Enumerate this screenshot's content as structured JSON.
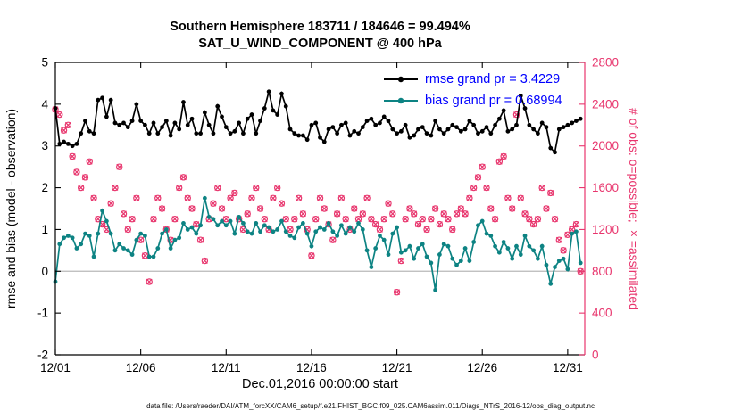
{
  "figure": {
    "title_line1": "Southern Hemisphere 183711 / 184646 = 99.494%",
    "title_line2": "SAT_U_WIND_COMPONENT @ 400 hPa",
    "xlabel": "Dec.01,2016 00:00:00 start",
    "ylabel_left": "rmse and bias (model - observation)",
    "ylabel_right": "# of obs: o=possible; ×=assimilated",
    "datafile_caption": "data file: /Users/raeder/DAI/ATM_forcXX/CAM6_setup/f.e21.FHIST_BGC.f09_025.CAM6assim.011/Diags_NTrS_2016-12/obs_diag_output.nc"
  },
  "chart_data": {
    "type": "line",
    "title": "Southern Hemisphere 183711 / 184646 = 99.494%",
    "subtitle": "SAT_U_WIND_COMPONENT @ 400 hPa",
    "xlabel": "Dec.01,2016 00:00:00 start",
    "ylabel_left": "rmse and bias (model - observation)",
    "ylabel_right": "# of obs: o=possible; ×=assimilated",
    "grid": "off",
    "legend": {
      "position": "top-right-inside",
      "text_color": "#0000ff",
      "rmse": "rmse grand pr = 3.4229",
      "bias": "bias grand pr = 0.68994"
    },
    "stats": {
      "rmse_grand_pr": 3.4229,
      "bias_grand_pr": 0.68994,
      "possible": 184646,
      "assimilated": 183711,
      "assimilated_pct": 99.494
    },
    "axes": {
      "left": {
        "range": [
          -2,
          5
        ],
        "ticks": [
          -2,
          -1,
          0,
          1,
          2,
          3,
          4,
          5
        ]
      },
      "right": {
        "range": [
          0,
          2800
        ],
        "ticks": [
          0,
          400,
          800,
          1200,
          1600,
          2000,
          2400,
          2800
        ]
      },
      "x": {
        "range_days": [
          1,
          32
        ],
        "ticks": [
          {
            "day": 1,
            "label": "12/01"
          },
          {
            "day": 6,
            "label": "12/06"
          },
          {
            "day": 11,
            "label": "12/11"
          },
          {
            "day": 16,
            "label": "12/16"
          },
          {
            "day": 21,
            "label": "12/21"
          },
          {
            "day": 26,
            "label": "12/26"
          },
          {
            "day": 31,
            "label": "12/31"
          }
        ]
      }
    },
    "x_start_day": 1,
    "x_step_days": 0.25,
    "series": {
      "rmse": {
        "name": "rmse",
        "axis": "left",
        "values": [
          3.9,
          3.05,
          3.1,
          3.05,
          3.0,
          3.05,
          3.3,
          3.6,
          3.35,
          3.3,
          4.1,
          4.15,
          3.7,
          4.1,
          3.55,
          3.5,
          3.55,
          3.45,
          3.6,
          4.0,
          3.6,
          3.5,
          3.3,
          3.55,
          3.3,
          3.45,
          3.6,
          3.25,
          3.55,
          3.4,
          4.05,
          3.5,
          3.65,
          3.3,
          3.3,
          3.8,
          3.5,
          3.3,
          3.95,
          3.7,
          3.45,
          3.3,
          3.35,
          3.55,
          3.3,
          3.65,
          3.75,
          3.3,
          3.6,
          3.9,
          4.3,
          3.85,
          3.75,
          4.25,
          3.95,
          3.4,
          3.3,
          3.25,
          3.25,
          3.15,
          3.5,
          3.55,
          3.2,
          3.1,
          3.4,
          3.45,
          3.3,
          3.5,
          3.55,
          3.25,
          3.35,
          3.3,
          3.45,
          3.6,
          3.65,
          3.5,
          3.55,
          3.7,
          3.6,
          3.4,
          3.3,
          3.35,
          3.5,
          3.2,
          3.25,
          3.4,
          3.45,
          3.3,
          3.25,
          3.6,
          3.4,
          3.3,
          3.4,
          3.5,
          3.45,
          3.35,
          3.4,
          3.6,
          3.5,
          3.3,
          3.35,
          3.45,
          3.3,
          3.5,
          3.65,
          3.85,
          3.35,
          3.4,
          3.5,
          4.2,
          3.9,
          3.5,
          3.4,
          3.3,
          3.55,
          3.45,
          2.95,
          2.85,
          3.4,
          3.45,
          3.5,
          3.55,
          3.6,
          3.65
        ]
      },
      "bias": {
        "name": "bias",
        "axis": "left",
        "values": [
          -0.25,
          0.65,
          0.8,
          0.85,
          0.8,
          0.55,
          0.65,
          0.9,
          0.85,
          0.35,
          0.9,
          1.45,
          1.2,
          0.9,
          0.5,
          0.65,
          0.55,
          0.5,
          0.4,
          0.75,
          0.9,
          0.85,
          0.35,
          0.35,
          0.55,
          0.9,
          1.0,
          0.55,
          0.75,
          0.8,
          1.15,
          1.0,
          1.05,
          0.9,
          1.1,
          1.75,
          1.3,
          1.25,
          1.1,
          1.2,
          1.1,
          1.2,
          0.9,
          1.3,
          1.15,
          0.95,
          0.9,
          1.15,
          0.95,
          1.1,
          1.05,
          0.95,
          1.0,
          1.2,
          0.95,
          0.85,
          0.8,
          1.05,
          1.15,
          0.9,
          0.6,
          0.95,
          1.05,
          1.0,
          1.15,
          0.95,
          0.85,
          1.1,
          0.9,
          1.05,
          0.95,
          1.15,
          1.0,
          0.5,
          0.1,
          0.55,
          0.85,
          0.75,
          0.4,
          0.9,
          1.05,
          0.45,
          0.5,
          0.6,
          0.3,
          0.55,
          0.65,
          0.35,
          0.2,
          -0.45,
          0.4,
          0.65,
          0.6,
          0.3,
          0.15,
          0.25,
          0.55,
          0.25,
          0.7,
          1.1,
          1.2,
          0.9,
          0.85,
          0.6,
          0.45,
          0.7,
          0.55,
          0.3,
          0.6,
          0.4,
          0.85,
          0.6,
          0.5,
          0.3,
          0.6,
          0.15,
          -0.3,
          0.1,
          0.25,
          0.3,
          0.05,
          0.9,
          0.95,
          0.2
        ]
      }
    },
    "series_obs": {
      "name": "# of obs (o=possible, ×=assimilated)",
      "axis": "right",
      "note": "possible and assimilated markers overlap (99.494% assimilated); estimated counts",
      "values": [
        2350,
        2300,
        2150,
        2200,
        1900,
        1750,
        1600,
        1700,
        1850,
        1500,
        1300,
        1250,
        1200,
        1450,
        1600,
        1800,
        1350,
        1200,
        1300,
        1500,
        1100,
        950,
        700,
        1300,
        1500,
        1400,
        1200,
        1100,
        1300,
        1600,
        1700,
        1500,
        1400,
        1250,
        1100,
        900,
        1300,
        1450,
        1600,
        1400,
        1300,
        1500,
        1550,
        1300,
        1200,
        1350,
        1500,
        1600,
        1400,
        1300,
        1200,
        1500,
        1600,
        1450,
        1300,
        1200,
        1300,
        1500,
        1350,
        1200,
        950,
        1300,
        1500,
        1400,
        1250,
        1100,
        1350,
        1500,
        1300,
        1200,
        1400,
        1300,
        1350,
        1500,
        1300,
        1250,
        1200,
        1300,
        1450,
        1350,
        600,
        900,
        1300,
        1400,
        1350,
        1250,
        1300,
        1200,
        1300,
        1400,
        1250,
        1350,
        1300,
        1200,
        1350,
        1400,
        1350,
        1500,
        1600,
        1700,
        1800,
        1600,
        1400,
        1300,
        1850,
        1900,
        1500,
        1400,
        2300,
        1500,
        1350,
        1300,
        1250,
        1300,
        1600,
        1400,
        1550,
        1300,
        1100,
        1000,
        1150,
        1200,
        1250,
        800
      ]
    },
    "colors": {
      "rmse": "#000000",
      "bias": "#0d8383",
      "obs": "#e8356d",
      "zero_line": "#b8b8b8",
      "axis_box": "#000000",
      "legend_text": "#0000ff"
    }
  }
}
